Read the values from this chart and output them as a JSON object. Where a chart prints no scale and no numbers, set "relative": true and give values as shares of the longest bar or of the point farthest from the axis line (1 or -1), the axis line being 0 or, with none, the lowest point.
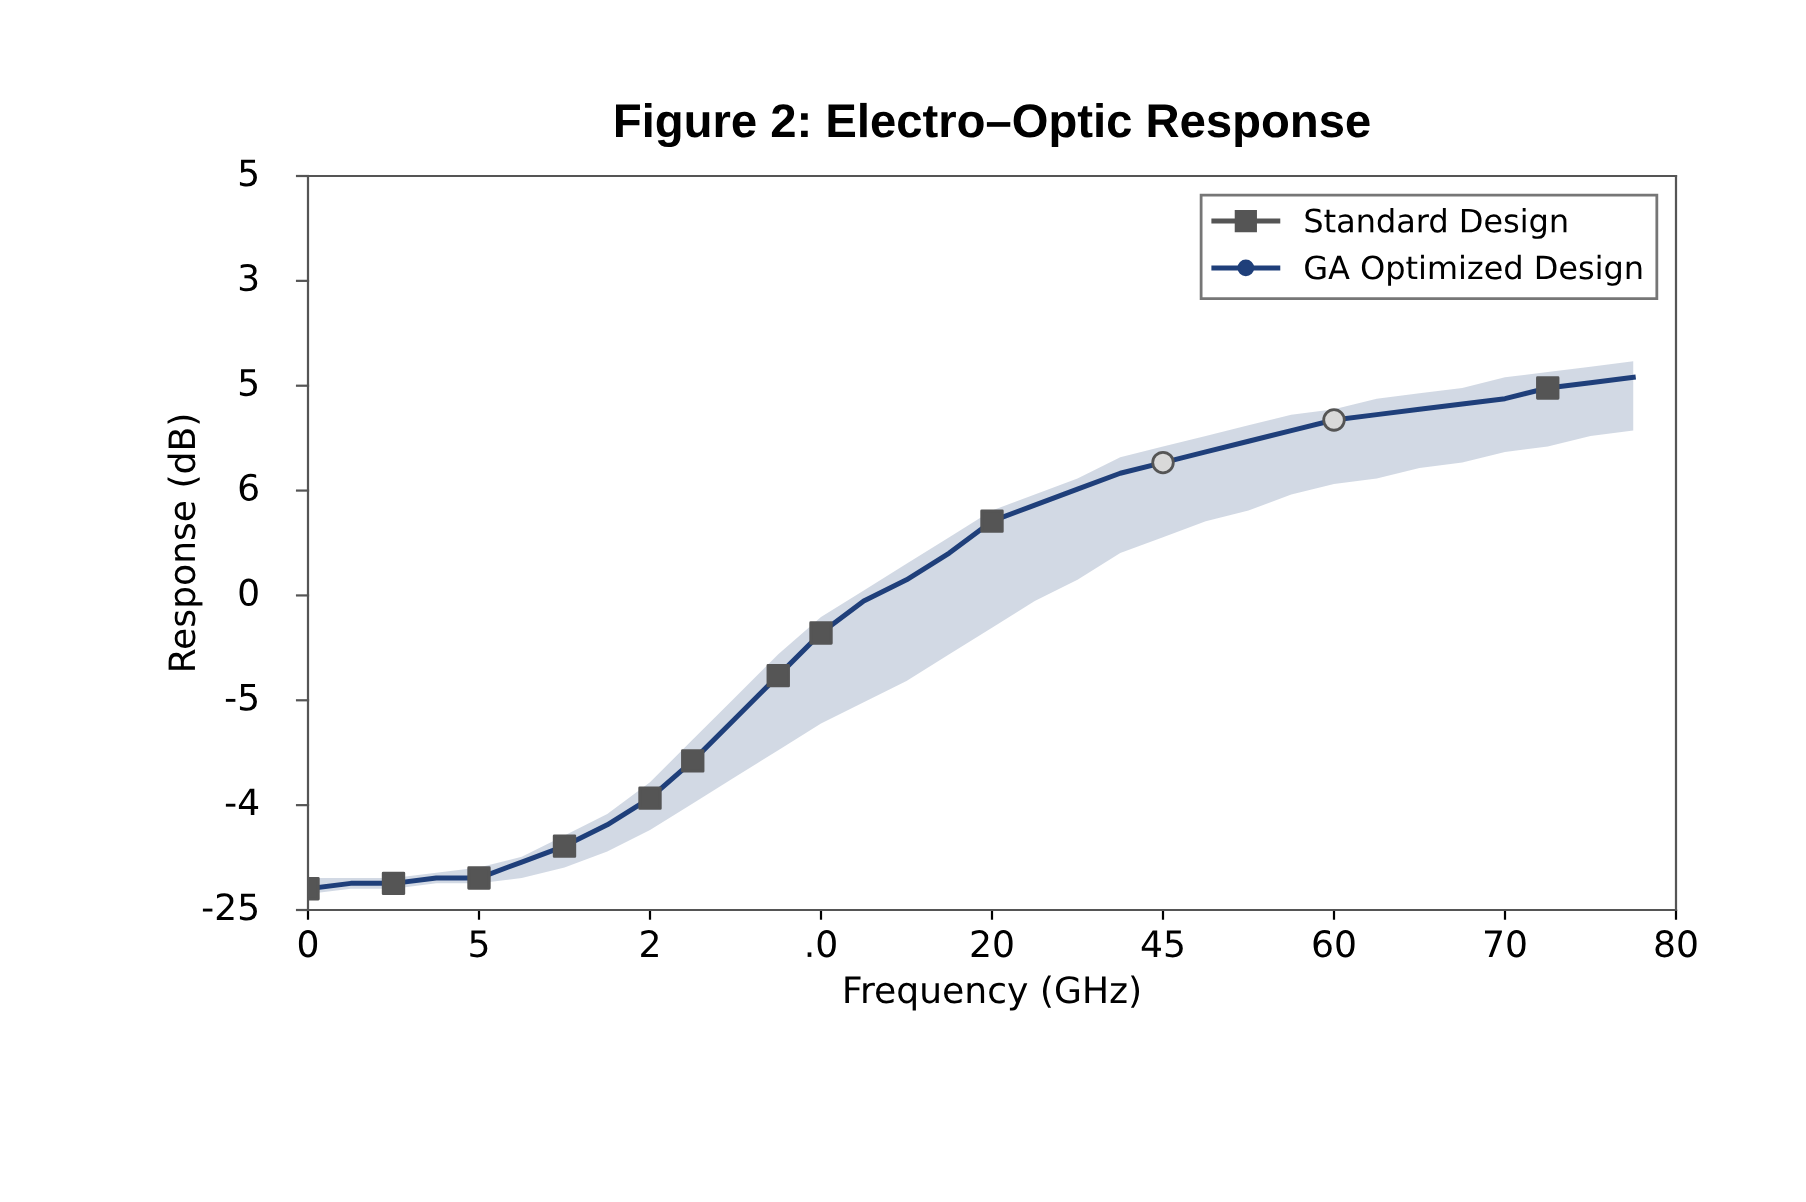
{
  "chart_data": {
    "type": "line",
    "title": "Figure 2: Electro–Optic Response",
    "xlabel": "Frequency (GHz)",
    "ylabel": "Response (dB)",
    "relative": true,
    "categories": [
      "0",
      null,
      null,
      null,
      "5",
      null,
      null,
      null,
      "2",
      null,
      null,
      null,
      ".0",
      null,
      null,
      null,
      "20",
      null,
      null,
      null,
      "45",
      null,
      null,
      null,
      "60",
      null,
      null,
      null,
      "70",
      null,
      null,
      null,
      "80"
    ],
    "annotations": [
      "-25",
      "-4",
      "-5",
      "0",
      "6",
      "5",
      "3",
      "5"
    ],
    "grid": false,
    "legend": "top right",
    "series": [
      {
        "name": "GA Optimized Design",
        "color": "#1f3f7a",
        "marker": "none",
        "line_style": "solid",
        "values": [
          0.04,
          0.05,
          0.05,
          0.06,
          0.06,
          0.09,
          0.12,
          0.16,
          0.21,
          0.28,
          0.36,
          0.44,
          0.52,
          0.58,
          0.62,
          0.67,
          0.73,
          0.76,
          0.79,
          0.82,
          0.84,
          0.86,
          0.88,
          0.9,
          0.92,
          0.93,
          0.94,
          0.95,
          0.96,
          0.98,
          0.99,
          1,
          null
        ],
        "lower": [
          0.03,
          0.04,
          0.04,
          0.05,
          0.05,
          0.06,
          0.08,
          0.11,
          0.15,
          0.2,
          0.25,
          0.3,
          0.35,
          0.39,
          0.43,
          0.48,
          0.53,
          0.58,
          0.62,
          0.67,
          0.7,
          0.73,
          0.75,
          0.78,
          0.8,
          0.81,
          0.83,
          0.84,
          0.86,
          0.87,
          0.89,
          0.9,
          null
        ],
        "upper": [
          0.06,
          0.06,
          0.06,
          0.07,
          0.08,
          0.1,
          0.14,
          0.18,
          0.24,
          0.32,
          0.4,
          0.48,
          0.55,
          0.6,
          0.65,
          0.7,
          0.75,
          0.78,
          0.81,
          0.85,
          0.87,
          0.89,
          0.91,
          0.93,
          0.94,
          0.96,
          0.97,
          0.98,
          1,
          1.01,
          1.02,
          1.03,
          null
        ]
      },
      {
        "name": "Standard Design",
        "type": "scatter",
        "color": "#555555",
        "marker": "square",
        "values": [
          0.04,
          null,
          0.05,
          null,
          0.06,
          null,
          0.12,
          null,
          0.21,
          0.28,
          null,
          0.44,
          0.52,
          null,
          null,
          null,
          0.73,
          null,
          null,
          null,
          null,
          null,
          null,
          null,
          null,
          null,
          null,
          null,
          null,
          0.98,
          null,
          null,
          null
        ]
      },
      {
        "type": "scatter",
        "color": "#d9d9d9",
        "marker": "circle",
        "values": [
          null,
          null,
          null,
          null,
          null,
          null,
          null,
          null,
          null,
          null,
          null,
          null,
          null,
          null,
          null,
          null,
          null,
          null,
          null,
          null,
          0.84,
          null,
          null,
          null,
          0.92,
          null,
          null,
          null,
          null,
          null,
          null,
          null,
          null
        ]
      }
    ]
  }
}
